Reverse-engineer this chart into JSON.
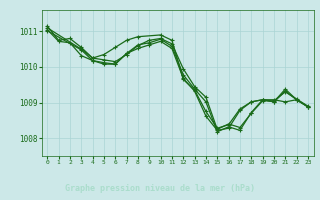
{
  "bg_color": "#cce8e8",
  "plot_bg_color": "#cce8e8",
  "label_bg_color": "#1a5c1a",
  "grid_color": "#aad4d4",
  "line_color": "#1a6b1a",
  "label_text_color": "#99ddcc",
  "title": "Graphe pression niveau de la mer (hPa)",
  "xlim": [
    -0.5,
    23.5
  ],
  "ylim": [
    1007.5,
    1011.6
  ],
  "yticks": [
    1008,
    1009,
    1010,
    1011
  ],
  "xticks": [
    0,
    1,
    2,
    3,
    4,
    5,
    6,
    7,
    8,
    9,
    10,
    11,
    12,
    13,
    14,
    15,
    16,
    17,
    18,
    19,
    20,
    21,
    22,
    23
  ],
  "series1": {
    "x": [
      0,
      1,
      2,
      3,
      4,
      5,
      6,
      7,
      8,
      9,
      10,
      11,
      12,
      13,
      14,
      15,
      16,
      17,
      18,
      19,
      20,
      21,
      22,
      23
    ],
    "y": [
      1011.15,
      1010.75,
      1010.8,
      1010.55,
      1010.25,
      1010.2,
      1010.15,
      1010.35,
      1010.6,
      1010.75,
      1010.8,
      1010.65,
      1009.95,
      1009.45,
      1009.15,
      1008.25,
      1008.4,
      1008.3,
      1008.7,
      1009.05,
      1009.05,
      1009.3,
      1009.1,
      1008.9
    ]
  },
  "series2": {
    "x": [
      0,
      1,
      2,
      3,
      4,
      5,
      6,
      7,
      8,
      9,
      10,
      11,
      12,
      13,
      14,
      15,
      16,
      17,
      18,
      19,
      20,
      21,
      22,
      23
    ],
    "y": [
      1011.05,
      1010.72,
      1010.68,
      1010.32,
      1010.18,
      1010.12,
      1010.08,
      1010.38,
      1010.62,
      1010.68,
      1010.78,
      1010.58,
      1009.78,
      1009.38,
      1009.02,
      1008.18,
      1008.32,
      1008.22,
      1008.72,
      1009.08,
      1009.08,
      1009.02,
      1009.08,
      1008.88
    ]
  },
  "series3": {
    "x": [
      0,
      3,
      4,
      5,
      6,
      7,
      8,
      10,
      11,
      12,
      13,
      14,
      15,
      16,
      17,
      18,
      19,
      20,
      21,
      22,
      23
    ],
    "y": [
      1011.1,
      1010.5,
      1010.25,
      1010.35,
      1010.55,
      1010.75,
      1010.85,
      1010.9,
      1010.75,
      1009.65,
      1009.35,
      1008.75,
      1008.28,
      1008.38,
      1008.82,
      1009.02,
      1009.08,
      1009.02,
      1009.32,
      1009.08,
      1008.88
    ]
  },
  "series4": {
    "x": [
      0,
      3,
      4,
      5,
      6,
      7,
      8,
      9,
      10,
      11,
      12,
      13,
      14,
      15,
      16,
      17,
      18,
      19,
      20,
      21,
      22,
      23
    ],
    "y": [
      1011.02,
      1010.48,
      1010.18,
      1010.08,
      1010.08,
      1010.38,
      1010.52,
      1010.62,
      1010.72,
      1010.52,
      1009.68,
      1009.32,
      1008.62,
      1008.22,
      1008.28,
      1008.78,
      1009.02,
      1009.08,
      1009.02,
      1009.38,
      1009.08,
      1008.88
    ]
  }
}
